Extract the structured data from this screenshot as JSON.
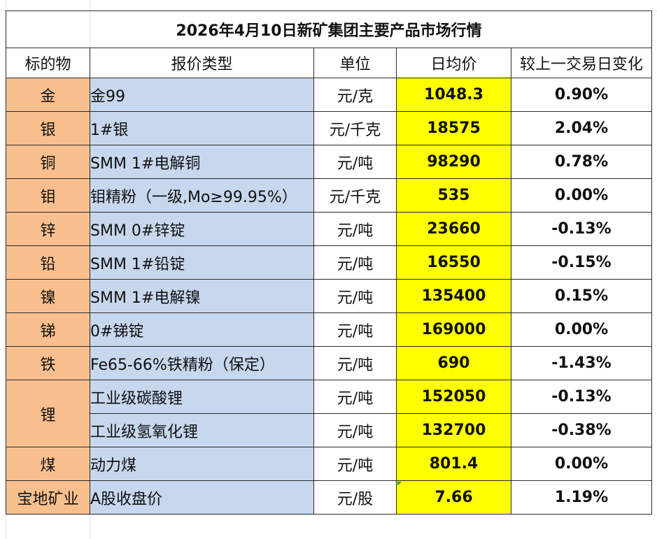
{
  "title": "2026年4月10日新矿集团主要产品市场行情",
  "headers": {
    "metal": "标的物",
    "price_type": "报价类型",
    "unit": "单位",
    "avg_price": "日均价",
    "change": "较上一交易日变化"
  },
  "rows": [
    {
      "metal": "金",
      "price_type": "金99",
      "unit": "元/克",
      "avg_price": "1048.3",
      "change": "0.90%",
      "direction": "up"
    },
    {
      "metal": "银",
      "price_type": "1#银",
      "unit": "元/千克",
      "avg_price": "18575",
      "change": "2.04%",
      "direction": "up"
    },
    {
      "metal": "铜",
      "price_type": "SMM 1#电解铜",
      "unit": "元/吨",
      "avg_price": "98290",
      "change": "0.78%",
      "direction": "up"
    },
    {
      "metal": "钼",
      "price_type": "钼精粉（一级,Mo≥99.95%）",
      "unit": "元/千克",
      "avg_price": "535",
      "change": "0.00%",
      "direction": "flat"
    },
    {
      "metal": "锌",
      "price_type": "SMM 0#锌锭",
      "unit": "元/吨",
      "avg_price": "23660",
      "change": "-0.13%",
      "direction": "down"
    },
    {
      "metal": "铅",
      "price_type": "SMM 1#铅锭",
      "unit": "元/吨",
      "avg_price": "16550",
      "change": "-0.15%",
      "direction": "down"
    },
    {
      "metal": "镍",
      "price_type": "SMM 1#电解镍",
      "unit": "元/吨",
      "avg_price": "135400",
      "change": "0.15%",
      "direction": "up"
    },
    {
      "metal": "锑",
      "price_type": "0#锑锭",
      "unit": "元/吨",
      "avg_price": "169000",
      "change": "0.00%",
      "direction": "flat"
    },
    {
      "metal": "铁",
      "price_type": "Fe65-66%铁精粉（保定）",
      "unit": "元/吨",
      "avg_price": "690",
      "change": "-1.43%",
      "direction": "down"
    },
    {
      "metal": "锂",
      "price_type": "工业级碳酸锂",
      "unit": "元/吨",
      "avg_price": "152050",
      "change": "-0.13%",
      "direction": "down"
    },
    {
      "metal": "",
      "price_type": "工业级氢氧化锂",
      "unit": "元/吨",
      "avg_price": "132700",
      "change": "-0.38%",
      "direction": "down"
    },
    {
      "metal": "煤",
      "price_type": "动力煤",
      "unit": "元/吨",
      "avg_price": "801.4",
      "change": "0.00%",
      "direction": "flat"
    },
    {
      "metal": "宝地矿业",
      "price_type": "A股收盘价",
      "unit": "元/股",
      "avg_price": "7.66",
      "change": "1.19%",
      "direction": "up"
    }
  ],
  "colors": {
    "metal_bg": "#f9c08e",
    "type_bg": "#c7d7ee",
    "price_bg": "#ffff00",
    "up": "#e02020",
    "down": "#1aa450",
    "flat": "#111111"
  }
}
